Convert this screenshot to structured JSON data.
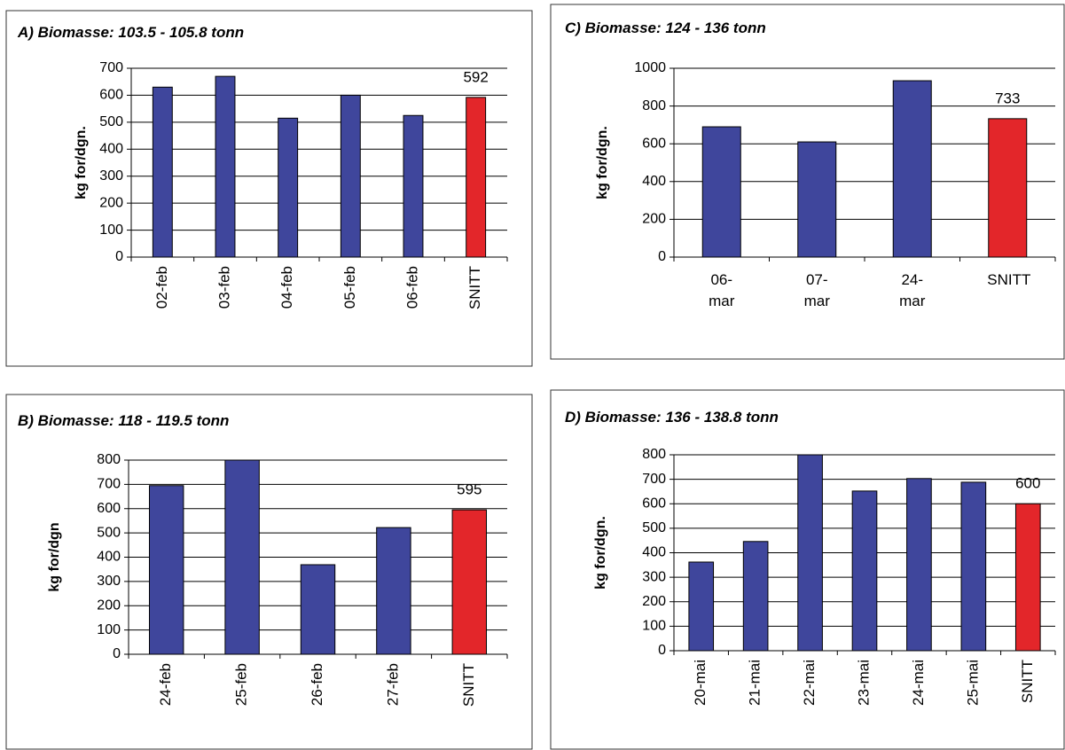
{
  "chart_data": [
    {
      "type": "bar",
      "title": "A) Biomasse: 103.5 - 105.8 tonn",
      "y_label": "kg for/dgn.",
      "categories": [
        "02-feb",
        "03-feb",
        "04-feb",
        "05-feb",
        "06-feb",
        "SNITT"
      ],
      "values": [
        630,
        670,
        515,
        600,
        525,
        592
      ],
      "value_labels": [
        null,
        null,
        null,
        null,
        null,
        "592"
      ],
      "colors": [
        "#3f469c",
        "#3f469c",
        "#3f469c",
        "#3f469c",
        "#3f469c",
        "#e3262a"
      ],
      "ylim": [
        0,
        700
      ],
      "yticks": [
        0,
        100,
        200,
        300,
        400,
        500,
        600,
        700
      ],
      "grid": true,
      "rotate_labels": true
    },
    {
      "type": "bar",
      "title": "C) Biomasse: 124 - 136 tonn",
      "y_label": "kg for/dgn.",
      "categories": [
        "06-mar",
        "07-mar",
        "24-mar",
        "SNITT"
      ],
      "values": [
        690,
        610,
        934,
        733
      ],
      "value_labels": [
        null,
        null,
        null,
        "733"
      ],
      "colors": [
        "#3f469c",
        "#3f469c",
        "#3f469c",
        "#e3262a"
      ],
      "ylim": [
        0,
        1000
      ],
      "yticks": [
        0,
        200,
        400,
        600,
        800,
        1000
      ],
      "grid": true,
      "rotate_labels": false
    },
    {
      "type": "bar",
      "title": "B) Biomasse: 118 - 119.5 tonn",
      "y_label": "kg for/dgn",
      "categories": [
        "24-feb",
        "25-feb",
        "26-feb",
        "27-feb",
        "SNITT"
      ],
      "values": [
        695,
        800,
        369,
        522,
        595
      ],
      "value_labels": [
        null,
        null,
        null,
        null,
        "595"
      ],
      "colors": [
        "#3f469c",
        "#3f469c",
        "#3f469c",
        "#3f469c",
        "#e3262a"
      ],
      "ylim": [
        0,
        800
      ],
      "yticks": [
        0,
        100,
        200,
        300,
        400,
        500,
        600,
        700,
        800
      ],
      "grid": true,
      "rotate_labels": true
    },
    {
      "type": "bar",
      "title": "D) Biomasse: 136 - 138.8 tonn",
      "y_label": "kg for/dgn.",
      "categories": [
        "20-mai",
        "21-mai",
        "22-mai",
        "23-mai",
        "24-mai",
        "25-mai",
        "SNITT"
      ],
      "values": [
        362,
        446,
        800,
        652,
        703,
        688,
        600
      ],
      "value_labels": [
        null,
        null,
        null,
        null,
        null,
        null,
        "600"
      ],
      "colors": [
        "#3f469c",
        "#3f469c",
        "#3f469c",
        "#3f469c",
        "#3f469c",
        "#3f469c",
        "#e3262a"
      ],
      "ylim": [
        0,
        800
      ],
      "yticks": [
        0,
        100,
        200,
        300,
        400,
        500,
        600,
        700,
        800
      ],
      "grid": true,
      "rotate_labels": true
    }
  ]
}
